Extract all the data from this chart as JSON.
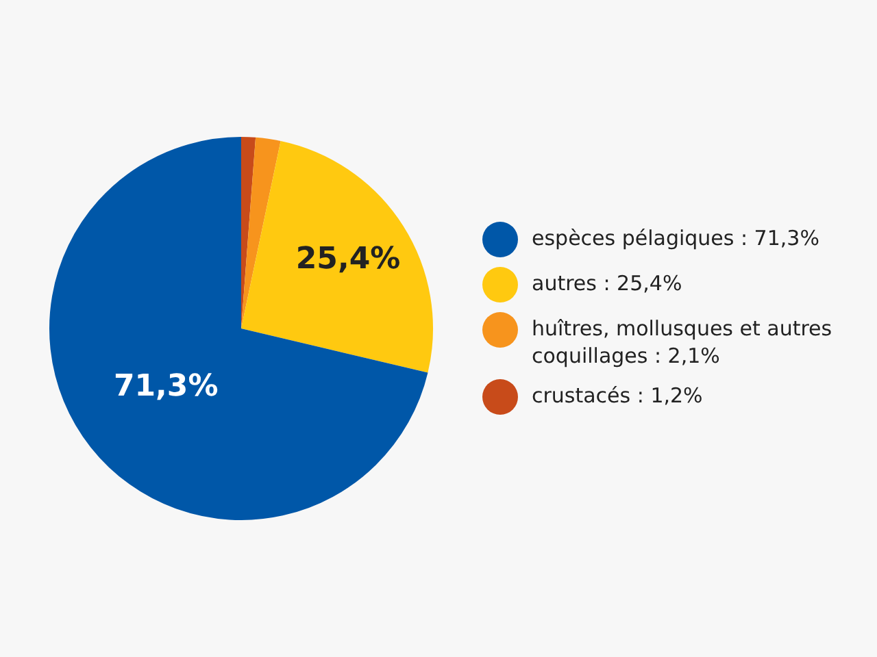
{
  "chart_data": {
    "type": "pie",
    "categories": [
      "espèces pélagiques : 71,3%",
      "autres : 25,4%",
      "huîtres, mollusques et autres coquillages : 2,1%",
      "crustacés : 1,2%"
    ],
    "values": [
      71.3,
      25.4,
      2.1,
      1.2
    ],
    "colors": [
      "#0057a8",
      "#ffc910",
      "#f7941d",
      "#c84b1a"
    ],
    "value_labels": [
      "71,3%",
      "25,4%",
      null,
      null
    ],
    "legend": "right"
  }
}
